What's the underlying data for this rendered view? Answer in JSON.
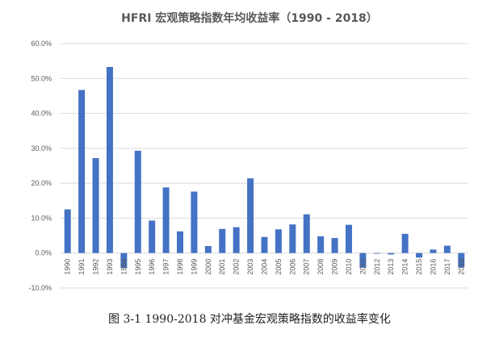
{
  "chart_data": {
    "type": "bar",
    "title": "HFRI 宏观策略指数年均收益率（1990 - 2018）",
    "xlabel": "",
    "ylabel": "",
    "ylim": [
      -10,
      60
    ],
    "y_ticks": [
      "-10.0%",
      "0.0%",
      "10.0%",
      "20.0%",
      "30.0%",
      "40.0%",
      "50.0%",
      "60.0%"
    ],
    "y_tick_values": [
      -10,
      0,
      10,
      20,
      30,
      40,
      50,
      60
    ],
    "grid": true,
    "bar_color": "#4472C4",
    "grid_color": "#D9D9D9",
    "categories": [
      "1990",
      "1991",
      "1992",
      "1993",
      "1994",
      "1995",
      "1996",
      "1997",
      "1998",
      "1999",
      "2000",
      "2001",
      "2002",
      "2003",
      "2004",
      "2005",
      "2006",
      "2007",
      "2008",
      "2009",
      "2010",
      "2011",
      "2012",
      "2013",
      "2014",
      "2015",
      "2016",
      "2017",
      "2018"
    ],
    "values": [
      12.5,
      46.7,
      27.2,
      53.3,
      -4.3,
      29.3,
      9.3,
      18.8,
      6.2,
      17.6,
      2.0,
      6.9,
      7.4,
      21.4,
      4.6,
      6.8,
      8.2,
      11.1,
      4.8,
      4.3,
      8.1,
      -4.2,
      -0.1,
      -0.4,
      5.5,
      -1.3,
      1.0,
      2.1,
      -4.1
    ]
  },
  "caption": "图 3-1 1990-2018 对冲基金宏观策略指数的收益率变化"
}
